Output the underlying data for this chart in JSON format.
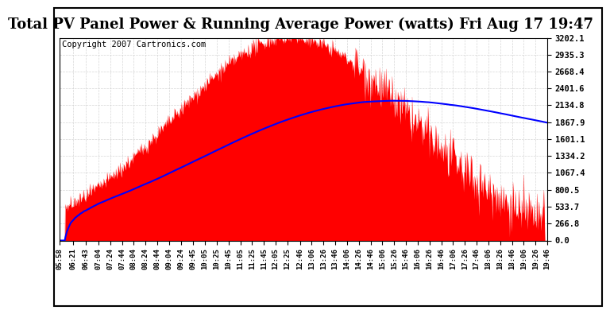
{
  "title": "Total PV Panel Power & Running Average Power (watts) Fri Aug 17 19:47",
  "copyright": "Copyright 2007 Cartronics.com",
  "bg_color": "#ffffff",
  "plot_bg_color": "#ffffff",
  "grid_color": "#cccccc",
  "fill_color": "#ff0000",
  "line_color": "#0000ff",
  "ytick_labels": [
    "0.0",
    "266.8",
    "533.7",
    "800.5",
    "1067.4",
    "1334.2",
    "1601.1",
    "1867.9",
    "2134.8",
    "2401.6",
    "2668.4",
    "2935.3",
    "3202.1"
  ],
  "ytick_values": [
    0.0,
    266.8,
    533.7,
    800.5,
    1067.4,
    1334.2,
    1601.1,
    1867.9,
    2134.8,
    2401.6,
    2668.4,
    2935.3,
    3202.1
  ],
  "ymax": 3202.1,
  "ymin": 0.0,
  "xtick_labels": [
    "05:58",
    "06:21",
    "06:43",
    "07:04",
    "07:24",
    "07:44",
    "08:04",
    "08:24",
    "08:44",
    "09:04",
    "09:24",
    "09:45",
    "10:05",
    "10:25",
    "10:45",
    "11:05",
    "11:25",
    "11:45",
    "12:05",
    "12:25",
    "12:46",
    "13:06",
    "13:26",
    "13:46",
    "14:06",
    "14:26",
    "14:46",
    "15:06",
    "15:26",
    "15:46",
    "16:06",
    "16:26",
    "16:46",
    "17:06",
    "17:26",
    "17:46",
    "18:06",
    "18:26",
    "18:46",
    "19:06",
    "19:26",
    "19:46"
  ],
  "title_fontsize": 13,
  "copyright_fontsize": 7.5
}
